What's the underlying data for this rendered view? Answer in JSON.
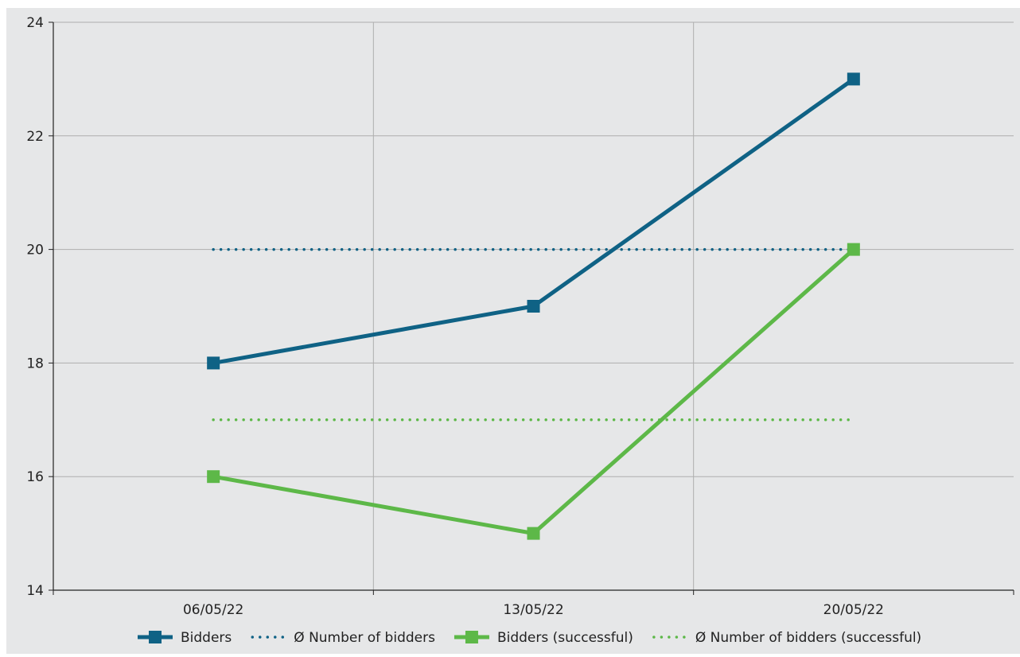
{
  "chart_data": {
    "type": "line",
    "title": "",
    "xlabel": "",
    "ylabel": "",
    "categories": [
      "06/05/22",
      "13/05/22",
      "20/05/22"
    ],
    "ylim": [
      14,
      24
    ],
    "yticks": [
      14,
      16,
      18,
      20,
      22,
      24
    ],
    "ytick_labels": [
      "14",
      "16",
      "18",
      "20",
      "22",
      "24"
    ],
    "grid": true,
    "legend_position": "bottom",
    "series": [
      {
        "name": "Bidders",
        "values": [
          18,
          19,
          23
        ],
        "color": "#0f6285",
        "style": "solid",
        "marker": "square"
      },
      {
        "name": "Ø Number of bidders",
        "values": [
          20,
          20,
          20
        ],
        "color": "#0f6285",
        "style": "dotted",
        "marker": "none"
      },
      {
        "name": "Bidders (successful)",
        "values": [
          16,
          15,
          20
        ],
        "color": "#5db848",
        "style": "solid",
        "marker": "square"
      },
      {
        "name": "Ø Number of bidders (successful)",
        "values": [
          17,
          17,
          17
        ],
        "color": "#5db848",
        "style": "dotted",
        "marker": "none"
      }
    ],
    "colors": {
      "plot_background": "#e6e7e8",
      "gridline": "#aeaeae",
      "axis": "#222222"
    }
  }
}
